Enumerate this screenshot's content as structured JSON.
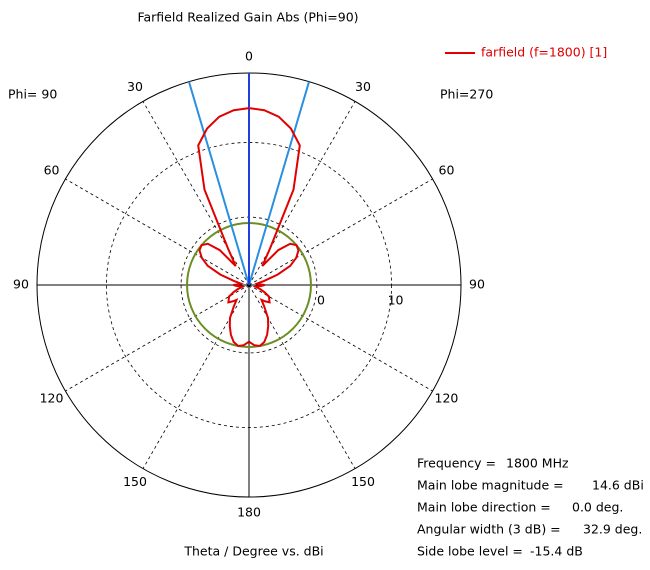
{
  "chart_data": {
    "type": "polar",
    "title": "Farfield Realized Gain Abs (Phi=90)",
    "left_label": "Phi= 90",
    "right_label": "Phi=270",
    "axis_label": "Theta / Degree vs. dBi",
    "rlim": [
      -9.1,
      19.3
    ],
    "rticks": [
      0,
      10
    ],
    "thetaticks": [
      0,
      30,
      60,
      90,
      120,
      150,
      180
    ],
    "x": [
      -180,
      -175,
      -170,
      -165,
      -160,
      -155,
      -150,
      -145,
      -140,
      -135,
      -130,
      -125,
      -120,
      -115,
      -110,
      -105,
      -100,
      -95,
      -90,
      -85,
      -80,
      -75,
      -70,
      -65,
      -60,
      -55,
      -50,
      -45,
      -40,
      -35,
      -30,
      -25,
      -20,
      -15,
      -10,
      -5,
      0,
      5,
      10,
      15,
      20,
      25,
      30,
      35,
      40,
      45,
      50,
      55,
      60,
      65,
      70,
      75,
      80,
      85,
      90,
      95,
      100,
      105,
      110,
      115,
      120,
      125,
      130,
      135,
      140,
      145,
      150,
      155,
      160,
      165,
      170,
      175,
      180
    ],
    "series": [
      {
        "name": "farfield (f=1800) [1]",
        "color": "#e00000",
        "values": [
          -1.5,
          -1.0,
          -0.8,
          -1.2,
          -2.0,
          -3.0,
          -4.0,
          -5.5,
          -6.5,
          -6.0,
          -5.5,
          -5.8,
          -6.0,
          -6.8,
          -7.5,
          -8.2,
          -8.0,
          -7.5,
          -7.0,
          -7.8,
          -8.0,
          -7.0,
          -5.0,
          -3.0,
          -1.8,
          -1.0,
          -0.8,
          -1.3,
          -3.0,
          -6.0,
          -3.5,
          5.0,
          10.8,
          12.6,
          13.8,
          14.4,
          14.6,
          14.4,
          13.8,
          12.6,
          10.8,
          5.0,
          -3.5,
          -6.0,
          -3.0,
          -1.3,
          -0.8,
          -1.0,
          -1.8,
          -3.0,
          -5.0,
          -7.0,
          -8.0,
          -7.8,
          -7.0,
          -7.5,
          -8.0,
          -8.2,
          -7.5,
          -6.8,
          -6.0,
          -5.8,
          -5.5,
          -6.0,
          -6.5,
          -5.5,
          -4.0,
          -3.0,
          -2.0,
          -1.2,
          -0.8,
          -1.0,
          -1.5
        ]
      }
    ],
    "direction_color": "#1f3fe0",
    "beam_color": "#2a8fe0",
    "sidelobe_color": "#6b8e23",
    "info": [
      {
        "label": "Frequency =",
        "value_label": "1800 MHz"
      },
      {
        "label": "Main lobe magnitude =",
        "value": 14.6,
        "value_label": "14.6 dBi"
      },
      {
        "label": "Main lobe direction =",
        "value": 0,
        "value_label": "0.0 deg."
      },
      {
        "label": "Angular width (3 dB) =",
        "value": 32.9,
        "value_label": "32.9 deg."
      },
      {
        "label": "Side lobe level =",
        "value": -15.4,
        "value_label": "-15.4 dB"
      }
    ]
  }
}
